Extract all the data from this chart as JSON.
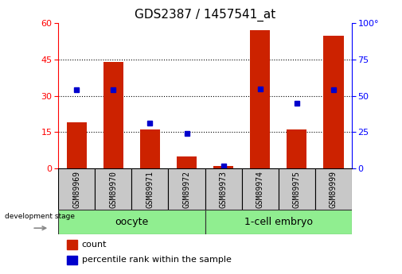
{
  "title": "GDS2387 / 1457541_at",
  "samples": [
    "GSM89969",
    "GSM89970",
    "GSM89971",
    "GSM89972",
    "GSM89973",
    "GSM89974",
    "GSM89975",
    "GSM89999"
  ],
  "counts": [
    19,
    44,
    16,
    5,
    1,
    57,
    16,
    55
  ],
  "percentile_ranks": [
    54,
    54,
    31,
    24,
    2,
    55,
    45,
    54
  ],
  "oocyte_label": "oocyte",
  "embryo_label": "1-cell embryo",
  "group_color": "#90ee90",
  "bar_color": "#cc2200",
  "marker_color": "#0000cc",
  "left_ylim": [
    0,
    60
  ],
  "right_ylim": [
    0,
    100
  ],
  "left_yticks": [
    0,
    15,
    30,
    45,
    60
  ],
  "right_yticks": [
    0,
    25,
    50,
    75,
    100
  ],
  "right_yticklabels": [
    "0",
    "25",
    "50",
    "75",
    "100°"
  ],
  "grid_values": [
    15,
    30,
    45
  ],
  "bar_width": 0.55,
  "label_fontsize": 7,
  "tick_fontsize": 8,
  "title_fontsize": 11,
  "group_fontsize": 9,
  "dev_stage_text": "development stage",
  "legend_count": "count",
  "legend_pct": "percentile rank within the sample"
}
